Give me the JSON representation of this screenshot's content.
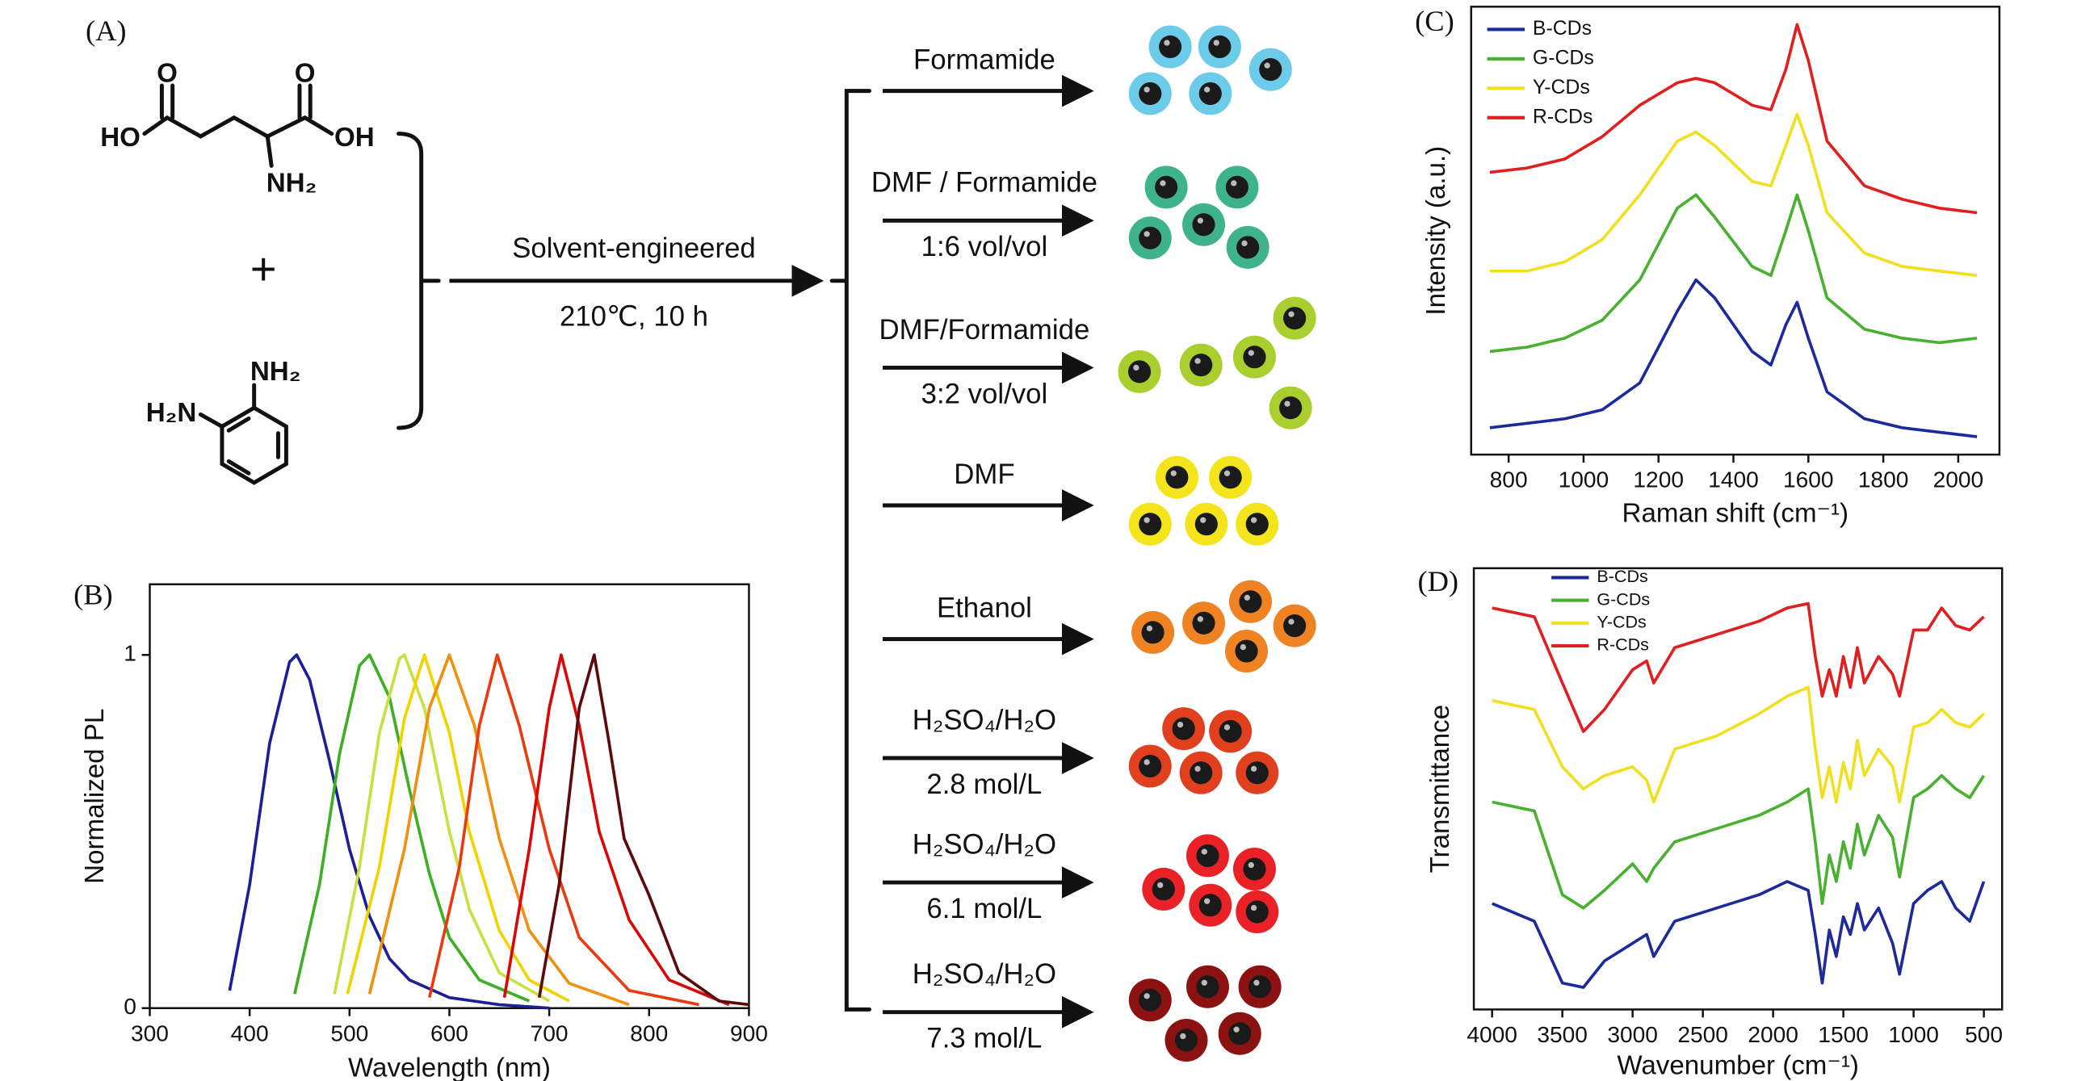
{
  "scheme": {
    "panel": "(A)",
    "reactant_1": {
      "hydroxyl_left": "HO",
      "oxygen_left": "O",
      "oxygen_right": "O",
      "hydroxyl_right": "OH",
      "amine": "NH₂"
    },
    "plus": "+",
    "reactant_2": {
      "amine_top": "NH₂",
      "amine_left": "H₂N"
    },
    "condition_top": "Solvent-engineered",
    "condition_bottom": "210℃, 10 h",
    "products": [
      {
        "above": "Formamide",
        "color": "#6ccbe8"
      },
      {
        "above": "DMF / Formamide",
        "below": "1:6 vol/vol",
        "color": "#3fb38c"
      },
      {
        "above": "DMF/Formamide",
        "below": "3:2 vol/vol",
        "color": "#a8cf2e"
      },
      {
        "above": "DMF",
        "color": "#f3e41c"
      },
      {
        "above": "Ethanol",
        "color": "#ef8222"
      },
      {
        "above": "H₂SO₄/H₂O",
        "below": "2.8 mol/L",
        "color": "#e0401e"
      },
      {
        "above": "H₂SO₄/H₂O",
        "below": "6.1 mol/L",
        "color": "#ea2228"
      },
      {
        "above": "H₂SO₄/H₂O",
        "below": "7.3 mol/L",
        "color": "#8c1212"
      }
    ]
  },
  "chart_data": [
    {
      "type": "line",
      "panel": "(B)",
      "x_label": "Wavelength (nm)",
      "y_label": "Normalized PL",
      "xlim": [
        300,
        900
      ],
      "xticks": [
        300,
        400,
        500,
        600,
        700,
        800,
        900
      ],
      "ylim": [
        0,
        1.2
      ],
      "yticks": [
        0,
        1
      ],
      "series": [
        {
          "color": "#1c1f96",
          "x": [
            380,
            400,
            420,
            440,
            447,
            460,
            480,
            500,
            520,
            540,
            560,
            600,
            650,
            700
          ],
          "values": [
            0.05,
            0.35,
            0.75,
            0.98,
            1,
            0.93,
            0.7,
            0.45,
            0.26,
            0.14,
            0.08,
            0.03,
            0.01,
            0
          ]
        },
        {
          "color": "#3cb022",
          "x": [
            445,
            470,
            490,
            510,
            520,
            540,
            560,
            580,
            600,
            630,
            680
          ],
          "values": [
            0.04,
            0.35,
            0.72,
            0.97,
            1,
            0.88,
            0.62,
            0.38,
            0.2,
            0.08,
            0.02
          ]
        },
        {
          "color": "#c8e040",
          "x": [
            485,
            510,
            530,
            550,
            555,
            575,
            600,
            620,
            650,
            700
          ],
          "values": [
            0.04,
            0.4,
            0.78,
            0.99,
            1,
            0.85,
            0.5,
            0.28,
            0.1,
            0.02
          ]
        },
        {
          "color": "#f0d400",
          "x": [
            498,
            530,
            555,
            575,
            600,
            620,
            650,
            680,
            720
          ],
          "values": [
            0.04,
            0.4,
            0.82,
            1,
            0.78,
            0.5,
            0.22,
            0.08,
            0.02
          ]
        },
        {
          "color": "#f09010",
          "x": [
            520,
            555,
            580,
            600,
            625,
            650,
            680,
            720,
            780
          ],
          "values": [
            0.04,
            0.45,
            0.85,
            1,
            0.8,
            0.48,
            0.22,
            0.07,
            0.01
          ]
        },
        {
          "color": "#ec3a10",
          "x": [
            580,
            610,
            630,
            648,
            670,
            700,
            730,
            780,
            850
          ],
          "values": [
            0.03,
            0.4,
            0.8,
            1,
            0.8,
            0.45,
            0.2,
            0.05,
            0.01
          ]
        },
        {
          "color": "#d80808",
          "x": [
            655,
            680,
            700,
            712,
            730,
            750,
            780,
            820,
            880
          ],
          "values": [
            0.03,
            0.45,
            0.85,
            1,
            0.8,
            0.5,
            0.25,
            0.08,
            0.01
          ]
        },
        {
          "color": "#5e0a0a",
          "x": [
            690,
            710,
            730,
            745,
            760,
            775,
            800,
            830,
            870,
            900
          ],
          "values": [
            0.03,
            0.35,
            0.85,
            1,
            0.75,
            0.48,
            0.32,
            0.1,
            0.02,
            0.01
          ]
        }
      ]
    },
    {
      "type": "line",
      "panel": "(C)",
      "x_label": "Raman shift (cm⁻¹)",
      "y_label": "Intensity (a.u.)",
      "xlim": [
        700,
        2110
      ],
      "xticks": [
        800,
        1000,
        1200,
        1400,
        1600,
        1800,
        2000
      ],
      "ylim": [
        0,
        10
      ],
      "legend": "upper left",
      "series": [
        {
          "name": "B-CDs",
          "color": "#1c2a9a",
          "x": [
            750,
            850,
            950,
            1050,
            1150,
            1250,
            1300,
            1350,
            1450,
            1500,
            1540,
            1570,
            1600,
            1650,
            1750,
            1850,
            1950,
            2050
          ],
          "values": [
            0.6,
            0.7,
            0.8,
            1.0,
            1.6,
            3.2,
            3.9,
            3.5,
            2.3,
            2.0,
            2.9,
            3.4,
            2.6,
            1.4,
            0.8,
            0.6,
            0.5,
            0.4
          ]
        },
        {
          "name": "G-CDs",
          "color": "#4ab030",
          "x": [
            750,
            850,
            950,
            1050,
            1150,
            1250,
            1300,
            1350,
            1450,
            1500,
            1540,
            1570,
            1600,
            1650,
            1750,
            1850,
            1950,
            2050
          ],
          "values": [
            2.3,
            2.4,
            2.6,
            3.0,
            3.9,
            5.5,
            5.8,
            5.3,
            4.2,
            4.0,
            5.0,
            5.8,
            5.0,
            3.5,
            2.8,
            2.6,
            2.5,
            2.6
          ]
        },
        {
          "name": "Y-CDs",
          "color": "#f0e020",
          "x": [
            750,
            850,
            950,
            1050,
            1150,
            1250,
            1300,
            1350,
            1450,
            1500,
            1540,
            1570,
            1600,
            1650,
            1750,
            1850,
            1950,
            2050
          ],
          "values": [
            4.1,
            4.1,
            4.3,
            4.8,
            5.8,
            7.0,
            7.2,
            6.9,
            6.1,
            6.0,
            6.9,
            7.6,
            6.9,
            5.4,
            4.5,
            4.2,
            4.1,
            4.0
          ]
        },
        {
          "name": "R-CDs",
          "color": "#e02020",
          "x": [
            750,
            850,
            950,
            1050,
            1150,
            1250,
            1300,
            1350,
            1450,
            1500,
            1540,
            1570,
            1600,
            1650,
            1750,
            1850,
            1950,
            2050
          ],
          "values": [
            6.3,
            6.4,
            6.6,
            7.1,
            7.8,
            8.3,
            8.4,
            8.3,
            7.8,
            7.7,
            8.6,
            9.6,
            8.8,
            7.0,
            6.0,
            5.7,
            5.5,
            5.4
          ]
        }
      ]
    },
    {
      "type": "line",
      "panel": "(D)",
      "x_label": "Wavenumber (cm⁻¹)",
      "y_label": "Transmittance",
      "xlim": [
        4130,
        370
      ],
      "xticks": [
        4000,
        3500,
        3000,
        2500,
        2000,
        1500,
        1000,
        500
      ],
      "ylim": [
        0,
        10
      ],
      "legend": "upper left",
      "series": [
        {
          "name": "B-CDs",
          "color": "#1c2a9a",
          "x": [
            4000,
            3700,
            3500,
            3350,
            3200,
            3000,
            2900,
            2850,
            2700,
            2400,
            2100,
            1900,
            1750,
            1700,
            1650,
            1600,
            1550,
            1500,
            1450,
            1400,
            1350,
            1250,
            1150,
            1100,
            1000,
            900,
            800,
            700,
            600,
            500
          ],
          "values": [
            2.4,
            2.0,
            0.6,
            0.5,
            1.1,
            1.5,
            1.7,
            1.2,
            2.0,
            2.3,
            2.6,
            2.9,
            2.7,
            1.7,
            0.6,
            1.8,
            1.2,
            2.1,
            1.7,
            2.4,
            1.8,
            2.3,
            1.5,
            0.8,
            2.4,
            2.7,
            2.9,
            2.3,
            2.0,
            2.9
          ]
        },
        {
          "name": "G-CDs",
          "color": "#4ab030",
          "x": [
            4000,
            3700,
            3500,
            3350,
            3200,
            3000,
            2900,
            2850,
            2700,
            2400,
            2100,
            1900,
            1750,
            1700,
            1650,
            1600,
            1550,
            1500,
            1450,
            1400,
            1350,
            1250,
            1150,
            1100,
            1000,
            900,
            800,
            700,
            600,
            500
          ],
          "values": [
            4.7,
            4.5,
            2.6,
            2.3,
            2.7,
            3.3,
            2.9,
            3.2,
            3.8,
            4.1,
            4.4,
            4.7,
            5.0,
            3.8,
            2.4,
            3.5,
            2.9,
            3.8,
            3.2,
            4.2,
            3.5,
            4.4,
            3.9,
            3.0,
            4.8,
            5.0,
            5.3,
            5.0,
            4.8,
            5.3
          ]
        },
        {
          "name": "Y-CDs",
          "color": "#f0e020",
          "x": [
            4000,
            3700,
            3500,
            3350,
            3200,
            3000,
            2900,
            2850,
            2700,
            2400,
            2100,
            1900,
            1750,
            1700,
            1650,
            1600,
            1550,
            1500,
            1450,
            1400,
            1350,
            1250,
            1150,
            1100,
            1000,
            900,
            800,
            700,
            600,
            500
          ],
          "values": [
            7.0,
            6.8,
            5.5,
            5.0,
            5.3,
            5.5,
            5.2,
            4.7,
            5.9,
            6.2,
            6.7,
            7.1,
            7.3,
            5.9,
            4.8,
            5.5,
            4.7,
            5.6,
            5.0,
            6.1,
            5.3,
            5.9,
            5.5,
            4.7,
            6.4,
            6.5,
            6.8,
            6.5,
            6.4,
            6.7
          ]
        },
        {
          "name": "R-CDs",
          "color": "#e02020",
          "x": [
            4000,
            3700,
            3500,
            3350,
            3200,
            3000,
            2900,
            2850,
            2700,
            2400,
            2100,
            1900,
            1750,
            1700,
            1650,
            1600,
            1550,
            1500,
            1450,
            1400,
            1350,
            1250,
            1150,
            1100,
            1000,
            900,
            800,
            700,
            600,
            500
          ],
          "values": [
            9.1,
            8.9,
            7.4,
            6.3,
            6.8,
            7.7,
            7.9,
            7.4,
            8.2,
            8.5,
            8.8,
            9.1,
            9.2,
            8.0,
            7.1,
            7.7,
            7.1,
            8.0,
            7.3,
            8.2,
            7.4,
            8.0,
            7.6,
            7.1,
            8.6,
            8.6,
            9.1,
            8.7,
            8.6,
            8.9
          ]
        }
      ]
    }
  ]
}
